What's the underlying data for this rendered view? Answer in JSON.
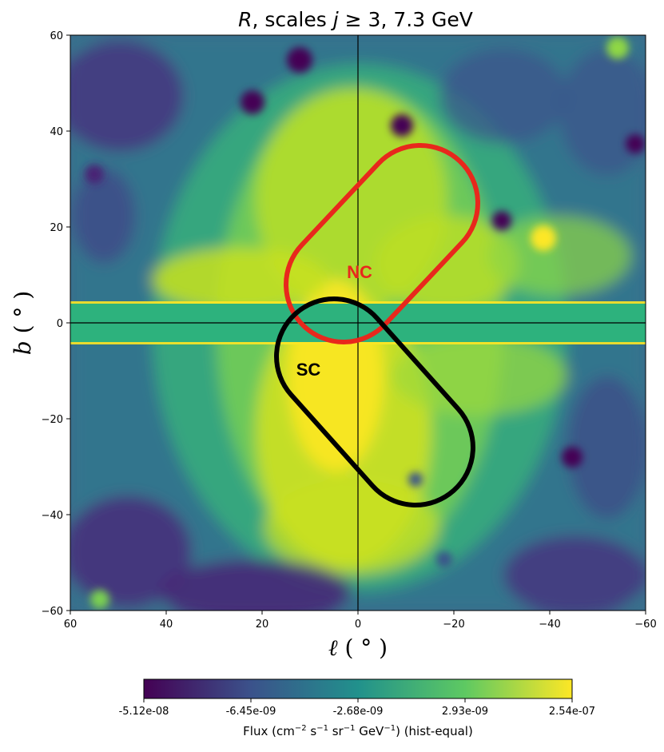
{
  "chart_data": {
    "type": "heatmap",
    "title": "R, scales j ≥ 3, 7.3 GeV",
    "title_parts": {
      "r": "R",
      "mid": ", scales ",
      "j": "j",
      "rest": " ≥ 3, 7.3 GeV"
    },
    "xlabel": "ℓ (°)",
    "ylabel": "b (°)",
    "xlabel_parts": {
      "sym": "ℓ",
      "unit": " ( ° )"
    },
    "ylabel_parts": {
      "sym": "b",
      "unit": " ( ° )"
    },
    "xlim": [
      60,
      -60
    ],
    "ylim": [
      -60,
      60
    ],
    "x_ticks": [
      {
        "value": 60,
        "label": "60"
      },
      {
        "value": 40,
        "label": "40"
      },
      {
        "value": 20,
        "label": "20"
      },
      {
        "value": 0,
        "label": "0"
      },
      {
        "value": -20,
        "label": "−20"
      },
      {
        "value": -40,
        "label": "−40"
      },
      {
        "value": -60,
        "label": "−60"
      }
    ],
    "y_ticks": [
      {
        "value": 60,
        "label": "60"
      },
      {
        "value": 40,
        "label": "40"
      },
      {
        "value": 20,
        "label": "20"
      },
      {
        "value": 0,
        "label": "0"
      },
      {
        "value": -20,
        "label": "−20"
      },
      {
        "value": -40,
        "label": "−40"
      },
      {
        "value": -60,
        "label": "−60"
      }
    ],
    "masked_band_b": [
      -4,
      4
    ],
    "reference_lines": {
      "l": 0,
      "b": 0
    },
    "colormap": "viridis",
    "colormap_colors": [
      "#440154",
      "#3b528b",
      "#21918c",
      "#5ec962",
      "#fde725"
    ],
    "regions": [
      {
        "label": "NC",
        "color": "#e8281c",
        "l_start": -13,
        "b_start": 25,
        "l_end": 3,
        "b_end": 8,
        "width_deg": 12
      },
      {
        "label": "SC",
        "color": "#000000",
        "l_start": 5,
        "b_start": -7,
        "l_end": -12,
        "b_end": -26,
        "width_deg": 12
      }
    ],
    "colorbar": {
      "ticks": [
        "-5.12e-08",
        "-6.45e-09",
        "-2.68e-09",
        "2.93e-09",
        "2.54e-07"
      ],
      "label": "Flux (cm⁻² s⁻¹ sr⁻¹ GeV⁻¹) (hist-equal)",
      "label_parts": {
        "a": "Flux (cm",
        "e1": "−2",
        "b": " s",
        "e2": "−1",
        "c": " sr",
        "e3": "−1",
        "d": " GeV",
        "e4": "−1",
        "f": ") (hist-equal)"
      }
    }
  }
}
